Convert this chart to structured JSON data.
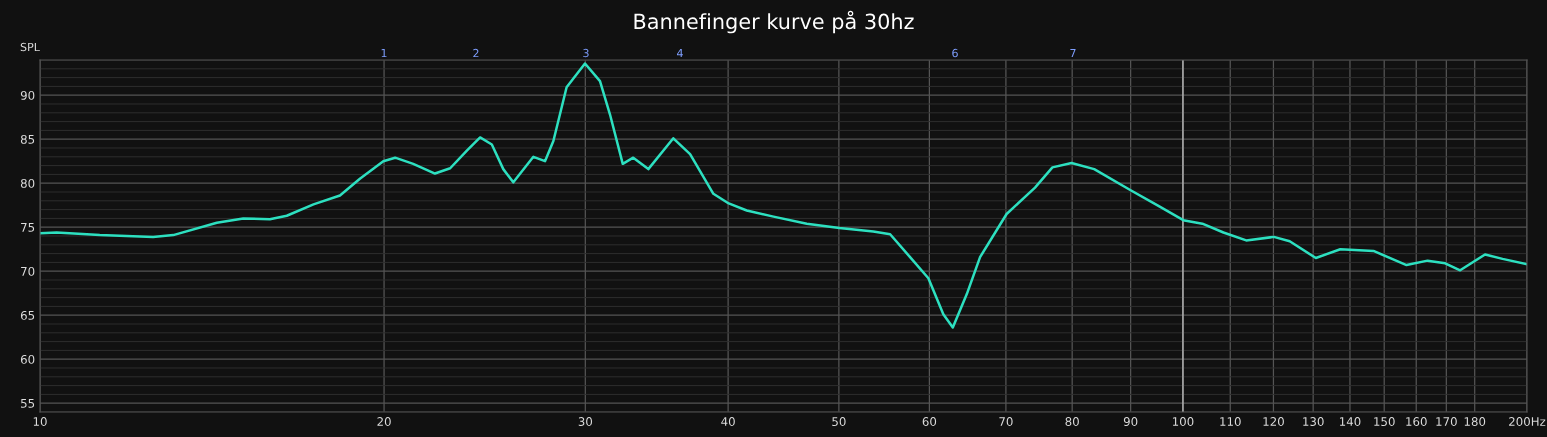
{
  "chart_data": {
    "type": "line",
    "title": "Bannefinger kurve på 30hz",
    "ylabel": "SPL",
    "x": [
      10,
      10.34,
      11.28,
      12.56,
      13.08,
      14.28,
      15.06,
      15.89,
      16.44,
      17.35,
      18.3,
      19.05,
      19.97,
      20.45,
      21.21,
      22.16,
      22.85,
      23.63,
      24.27,
      24.85,
      25.43,
      25.95,
      27.02,
      27.66,
      28.13,
      28.89,
      29.98,
      30.9,
      31.53,
      32.35,
      33.04,
      34.06,
      35.82,
      37.05,
      38.83,
      40.05,
      41.53,
      43.83,
      46.87,
      50.06,
      53.59,
      55.44,
      57.71,
      59.88,
      61.71,
      62.9,
      64.7,
      66.45,
      70.1,
      74.23,
      76.88,
      79.9,
      83.63,
      90.0,
      94.93,
      100.07,
      103.99,
      108.5,
      113.6,
      120.1,
      124.0,
      130.7,
      137.3,
      146.8,
      156.9,
      163.7,
      169.6,
      174.8,
      183.8,
      190.4,
      200
    ],
    "series": [
      {
        "color": "#2de0c0",
        "values": [
          74.3,
          74.4,
          74.1,
          73.9,
          74.1,
          75.5,
          76.0,
          75.9,
          76.3,
          77.6,
          78.6,
          80.5,
          82.5,
          82.9,
          82.2,
          81.1,
          81.7,
          83.7,
          85.2,
          84.4,
          81.6,
          80.1,
          83.0,
          82.5,
          84.8,
          90.9,
          93.6,
          91.6,
          87.8,
          82.2,
          82.9,
          81.6,
          85.1,
          83.3,
          78.8,
          77.7,
          76.9,
          76.2,
          75.4,
          74.9,
          74.5,
          74.2,
          71.6,
          69.2,
          65.1,
          63.6,
          67.4,
          71.6,
          76.5,
          79.5,
          81.8,
          82.3,
          81.6,
          79.2,
          77.5,
          75.8,
          75.4,
          74.4,
          73.5,
          73.9,
          73.4,
          71.5,
          72.5,
          72.3,
          70.7,
          71.2,
          70.9,
          70.1,
          71.9,
          71.4,
          70.8
        ]
      }
    ],
    "log": "x",
    "xlim": [
      10,
      200
    ],
    "ylim": [
      54,
      94
    ],
    "xticks": [
      10,
      20,
      30,
      40,
      50,
      60,
      70,
      80,
      90,
      100,
      110,
      120,
      130,
      140,
      150,
      160,
      170,
      180,
      {
        "value": 200,
        "label": "200Hz"
      }
    ],
    "yticks": [
      55,
      60,
      65,
      70,
      75,
      80,
      85,
      90
    ],
    "ref_lines": [
      {
        "axis": "x",
        "value": 100,
        "label": null,
        "color": "#bbbbbb"
      }
    ],
    "annotations": [
      "1",
      "2",
      "3",
      "4",
      "6",
      "7"
    ],
    "grid": true,
    "legend": false,
    "marker": "none",
    "line_style": "solid"
  }
}
